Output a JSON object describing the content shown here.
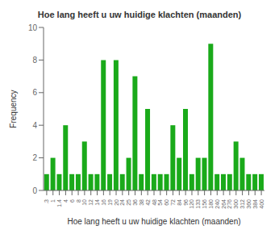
{
  "chart_data": {
    "type": "bar",
    "title": "Hoe lang heeft u uw huidige klachten (maanden)",
    "xlabel": "Hoe lang heeft u uw huidige klachten (maanden)",
    "ylabel": "Frequency",
    "categories": [
      ".3",
      "1",
      "1.4",
      "4",
      "6",
      "8",
      "10",
      "12",
      "14",
      "16",
      "19",
      "20",
      "24",
      "25",
      "36",
      "38",
      "42",
      "48",
      "54",
      "60",
      "72",
      "84",
      "96",
      "120",
      "133",
      "156",
      "180",
      "240",
      "264",
      "276",
      "300",
      "312",
      "360",
      "384",
      "400"
    ],
    "values": [
      1,
      2,
      1,
      4,
      1,
      1,
      3,
      1,
      1,
      8,
      1,
      8,
      1,
      2,
      7,
      1,
      5,
      1,
      1,
      1,
      4,
      2,
      5,
      1,
      2,
      2,
      9,
      1,
      1,
      1,
      3,
      2,
      1,
      1,
      1
    ],
    "color": "#1aaa1a",
    "ylim": [
      0,
      10
    ],
    "yticks": [
      0,
      2,
      4,
      6,
      8,
      10
    ],
    "grid": false
  }
}
